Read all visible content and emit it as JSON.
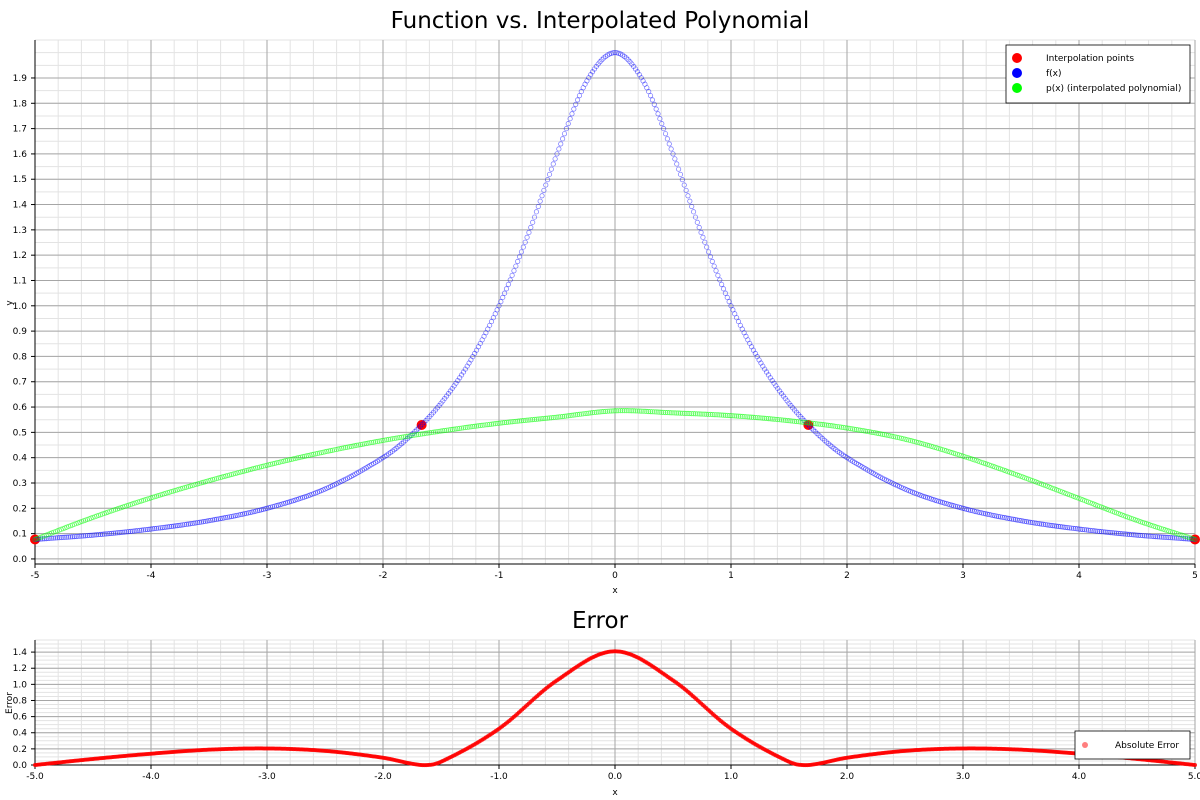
{
  "chart_data": [
    {
      "type": "scatter",
      "title": "Function vs. Interpolated Polynomial",
      "xlabel": "x",
      "ylabel": "y",
      "xlim": [
        -5,
        5
      ],
      "ylim": [
        -0.02,
        2.05
      ],
      "xticks": [
        -5,
        -4,
        -3,
        -2,
        -1,
        0,
        1,
        2,
        3,
        4,
        5
      ],
      "xtick_labels": [
        "-5",
        "-4",
        "-3",
        "-2",
        "-1",
        "0",
        "1",
        "2",
        "3",
        "4",
        "5"
      ],
      "yticks": [
        0.0,
        0.1,
        0.2,
        0.3,
        0.4,
        0.5,
        0.6,
        0.7,
        0.8,
        0.9,
        1.0,
        1.1,
        1.2,
        1.3,
        1.4,
        1.5,
        1.6,
        1.7,
        1.8,
        1.9
      ],
      "ytick_labels": [
        "0.0",
        "0.1",
        "0.2",
        "0.3",
        "0.4",
        "0.5",
        "0.6",
        "0.7",
        "0.8",
        "0.9",
        "1.0",
        "1.1",
        "1.2",
        "1.3",
        "1.4",
        "1.5",
        "1.6",
        "1.7",
        "1.8",
        "1.9"
      ],
      "grid": true,
      "legend_position": "top-right",
      "series": [
        {
          "name": "Interpolation points",
          "color": "#ff0000",
          "marker": "filled-circle",
          "x": [
            -5.0,
            -1.667,
            1.667,
            5.0
          ],
          "y": [
            0.077,
            0.529,
            0.529,
            0.077
          ]
        },
        {
          "name": "f(x)",
          "color": "#0000ff",
          "marker": "hollow-circle",
          "x": [
            -5.0,
            -4.5,
            -4.0,
            -3.5,
            -3.0,
            -2.5,
            -2.0,
            -1.75,
            -1.5,
            -1.25,
            -1.0,
            -0.75,
            -0.5,
            -0.25,
            0.0,
            0.25,
            0.5,
            0.75,
            1.0,
            1.25,
            1.5,
            1.75,
            2.0,
            2.5,
            3.0,
            3.5,
            4.0,
            4.5,
            5.0
          ],
          "y": [
            0.077,
            0.094,
            0.118,
            0.151,
            0.2,
            0.276,
            0.4,
            0.492,
            0.615,
            0.78,
            1.0,
            1.28,
            1.6,
            1.882,
            2.0,
            1.882,
            1.6,
            1.28,
            1.0,
            0.78,
            0.615,
            0.492,
            0.4,
            0.276,
            0.2,
            0.151,
            0.118,
            0.094,
            0.077
          ]
        },
        {
          "name": "p(x) (interpolated polynomial)",
          "color": "#00ff00",
          "marker": "hollow-circle",
          "x": [
            -5.0,
            -4.5,
            -4.0,
            -3.5,
            -3.0,
            -2.5,
            -2.0,
            -1.5,
            -1.0,
            -0.5,
            0.0,
            0.5,
            1.0,
            1.5,
            2.0,
            2.5,
            3.0,
            3.5,
            4.0,
            4.5,
            5.0
          ],
          "y": [
            0.077,
            0.164,
            0.241,
            0.309,
            0.37,
            0.423,
            0.468,
            0.505,
            0.536,
            0.56,
            0.585,
            0.577,
            0.566,
            0.546,
            0.517,
            0.473,
            0.406,
            0.326,
            0.239,
            0.152,
            0.077
          ]
        }
      ]
    },
    {
      "type": "scatter",
      "title": "Error",
      "xlabel": "x",
      "ylabel": "Error",
      "xlim": [
        -5,
        5
      ],
      "ylim": [
        0,
        1.55
      ],
      "xticks": [
        -5,
        -4,
        -3,
        -2,
        -1,
        0,
        1,
        2,
        3,
        4,
        5
      ],
      "xtick_labels": [
        "-5.0",
        "-4.0",
        "-3.0",
        "-2.0",
        "-1.0",
        "0.0",
        "1.0",
        "2.0",
        "3.0",
        "4.0",
        "5.0"
      ],
      "yticks": [
        0.0,
        0.2,
        0.4,
        0.6,
        0.8,
        1.0,
        1.2,
        1.4
      ],
      "ytick_labels": [
        "0.0",
        "0.2",
        "0.4",
        "0.6",
        "0.8",
        "1.0",
        "1.2",
        "1.4"
      ],
      "grid": true,
      "legend_position": "bottom-right",
      "series": [
        {
          "name": "Absolute Error",
          "color": "#ff0000",
          "marker": "filled-circle",
          "x": [
            -5.0,
            -4.5,
            -4.0,
            -3.5,
            -3.0,
            -2.5,
            -2.0,
            -1.667,
            -1.5,
            -1.0,
            -0.5,
            0.0,
            0.5,
            1.0,
            1.5,
            1.667,
            2.0,
            2.5,
            3.0,
            3.5,
            4.0,
            4.5,
            5.0
          ],
          "y": [
            0.0,
            0.075,
            0.14,
            0.19,
            0.205,
            0.175,
            0.09,
            0.0,
            0.04,
            0.45,
            1.05,
            1.41,
            1.05,
            0.45,
            0.04,
            0.0,
            0.09,
            0.175,
            0.205,
            0.19,
            0.14,
            0.075,
            0.0
          ]
        }
      ]
    }
  ]
}
